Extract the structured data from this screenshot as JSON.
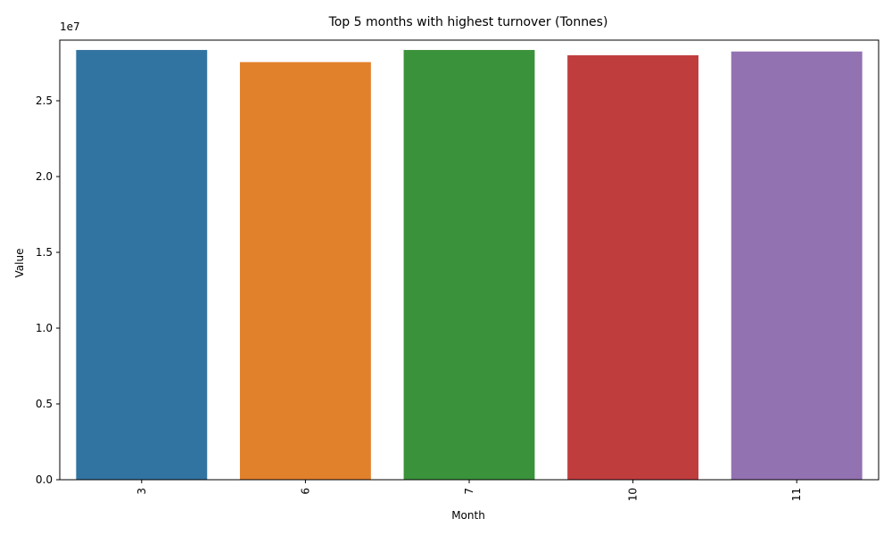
{
  "chart_data": {
    "type": "bar",
    "title": "Top 5 months with highest turnover (Tonnes)",
    "xlabel": "Month",
    "ylabel": "Value",
    "y_offset_label": "1e7",
    "categories": [
      "3",
      "6",
      "7",
      "10",
      "11"
    ],
    "values": [
      28350000,
      27550000,
      28350000,
      28000000,
      28250000
    ],
    "colors": [
      "#3274a1",
      "#e1812c",
      "#3a923a",
      "#c03d3e",
      "#9372b2"
    ],
    "ylim": [
      0,
      29000000
    ],
    "yticks": [
      0,
      5000000,
      10000000,
      15000000,
      20000000,
      25000000
    ],
    "ytick_labels": [
      "0.0",
      "0.5",
      "1.0",
      "1.5",
      "2.0",
      "2.5"
    ],
    "grid": false,
    "legend": "none"
  }
}
